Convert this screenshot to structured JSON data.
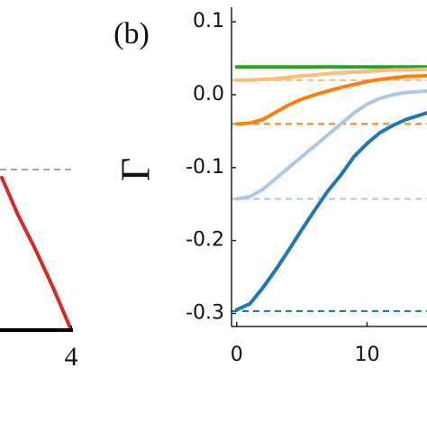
{
  "chart_data": [
    {
      "type": "line",
      "x": [
        2.05,
        2.5,
        3.0,
        3.5,
        4.0
      ],
      "series": [
        {
          "color": "#d62a2a",
          "values": [
            0.95,
            0.72,
            0.5,
            0.26,
            0.0
          ]
        }
      ],
      "reference_lines": [
        {
          "value": 1.0,
          "color": "#888888"
        }
      ],
      "xlim": [
        2,
        4.05
      ],
      "ylim": [
        0,
        2
      ],
      "xticks": [
        4
      ]
    },
    {
      "type": "line",
      "panel_label": "(b)",
      "ylabel": "Γ",
      "x": [
        0,
        1,
        2,
        3,
        4,
        5,
        6,
        7,
        8,
        9,
        10,
        11,
        12,
        13,
        14.6
      ],
      "series": [
        {
          "color": "#2ca02c",
          "values": [
            0.038,
            0.038,
            0.038,
            0.038,
            0.038,
            0.038,
            0.038,
            0.038,
            0.038,
            0.038,
            0.038,
            0.038,
            0.038,
            0.038,
            0.038
          ]
        },
        {
          "color": "#ffbb78",
          "values": [
            0.02,
            0.02,
            0.021,
            0.022,
            0.024,
            0.026,
            0.027,
            0.029,
            0.03,
            0.031,
            0.032,
            0.033,
            0.034,
            0.034,
            0.035
          ]
        },
        {
          "color": "#ff7f0e",
          "values": [
            -0.04,
            -0.039,
            -0.034,
            -0.024,
            -0.014,
            -0.006,
            0.0,
            0.005,
            0.01,
            0.014,
            0.018,
            0.021,
            0.023,
            0.025,
            0.026
          ]
        },
        {
          "color": "#aec7e8",
          "values": [
            -0.143,
            -0.14,
            -0.13,
            -0.115,
            -0.1,
            -0.085,
            -0.07,
            -0.055,
            -0.04,
            -0.025,
            -0.013,
            -0.005,
            0.0,
            0.003,
            0.005
          ]
        },
        {
          "color": "#1f77b4",
          "values": [
            -0.295,
            -0.287,
            -0.265,
            -0.24,
            -0.213,
            -0.185,
            -0.158,
            -0.132,
            -0.11,
            -0.085,
            -0.067,
            -0.052,
            -0.042,
            -0.034,
            -0.025
          ]
        }
      ],
      "reference_lines": [
        {
          "value": 0.02,
          "color": "#ffbb78"
        },
        {
          "value": -0.04,
          "color": "#ff7f0e"
        },
        {
          "value": -0.143,
          "color": "#aec7e8"
        },
        {
          "value": -0.297,
          "color": "#1f77b4"
        }
      ],
      "xlim": [
        -0.4,
        14.6
      ],
      "ylim": [
        -0.318,
        0.12
      ],
      "xticks": [
        0,
        10
      ],
      "yticks": [
        {
          "value": 0.1,
          "label": "0.1"
        },
        {
          "value": 0.0,
          "label": "0.0"
        },
        {
          "value": -0.1,
          "label": "-0.1"
        },
        {
          "value": -0.2,
          "label": "-0.2"
        },
        {
          "value": -0.3,
          "label": "-0.3"
        }
      ]
    }
  ]
}
